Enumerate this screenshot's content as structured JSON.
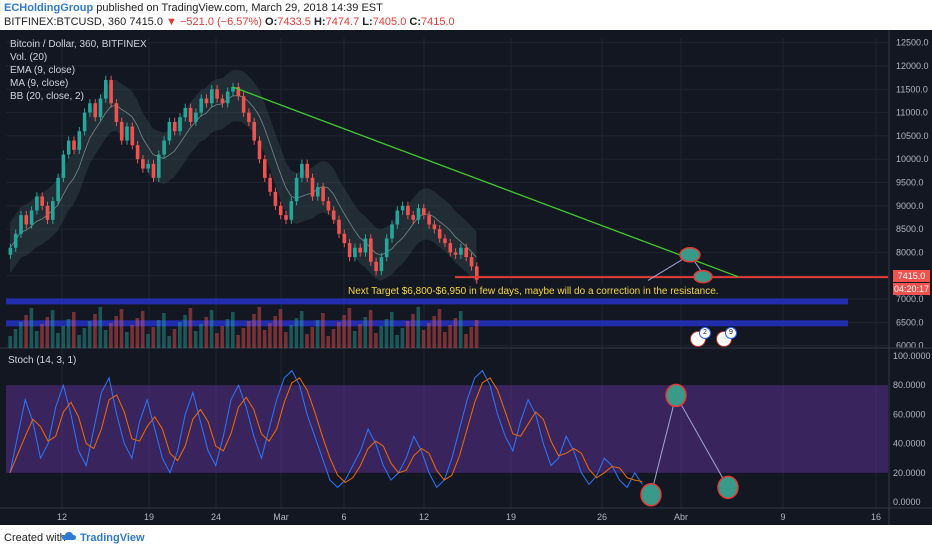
{
  "header": {
    "author": "ECHoldingGroup",
    "published": "published on TradingView.com, March 29, 2018 14:39 EST",
    "symbol": "BITFINEX:BTCUSD, 360",
    "last": "7415.0",
    "change": "−521.0 (−6.57%)",
    "o_label": "O:",
    "o": "7433.5",
    "h_label": "H:",
    "h": "7474.7",
    "l_label": "L:",
    "l": "7405.0",
    "c_label": "C:",
    "c": "7415.0"
  },
  "legend": {
    "title": "Bitcoin / Dollar, 360, BITFINEX",
    "vol": "Vol. (20)",
    "ema": "EMA (9, close)",
    "ma": "MA (9, close)",
    "bb": "BB (20, close, 2)"
  },
  "stoch_label": "Stoch (14, 3, 1)",
  "annotation": "Next Target $6,800-$6,950 in few days, maybe will do a correction in the resistance.",
  "price_tags": {
    "current": "7415.0",
    "countdown": "04:20:17"
  },
  "flags": [
    {
      "badge": "2"
    },
    {
      "badge": "9"
    }
  ],
  "footer": {
    "created": "Created with",
    "brand": "TradingView"
  },
  "colors": {
    "background": "#131722",
    "up": "#26a69a",
    "down": "#ef5350",
    "trendline": "#3fcf2a",
    "support": "#e53935",
    "target_band": "#2431c4",
    "stoch_k": "#2979ff",
    "stoch_d": "#ef6c00",
    "stoch_band": "#5b2f8f"
  },
  "chart_data": {
    "type": "candlestick",
    "symbol": "BITFINEX:BTCUSD",
    "interval": "360",
    "x_tick_labels": [
      "12",
      "19",
      "24",
      "Mar",
      "6",
      "12",
      "19",
      "26",
      "Abr",
      "9",
      "16"
    ],
    "y_tick_labels": [
      "12500.0",
      "12000.0",
      "11500.0",
      "11000.0",
      "10500.0",
      "10000.0",
      "9500.0",
      "9000.0",
      "8500.0",
      "8000.0",
      "7500.0",
      "7000.0",
      "6500.0",
      "6000.0"
    ],
    "y_range": [
      5950,
      12600
    ],
    "closes": [
      8100,
      8400,
      8800,
      8600,
      8900,
      9200,
      9000,
      8700,
      9100,
      9600,
      10100,
      10400,
      10200,
      10600,
      11000,
      11200,
      10900,
      11300,
      11700,
      11200,
      10800,
      10400,
      10700,
      10300,
      10000,
      9800,
      9900,
      9600,
      10100,
      10400,
      10800,
      10600,
      10900,
      11100,
      10800,
      11000,
      11300,
      11200,
      11500,
      11300,
      11200,
      11450,
      11550,
      11350,
      11000,
      10800,
      10400,
      10000,
      9600,
      9300,
      9000,
      8800,
      8700,
      9100,
      9600,
      9900,
      9600,
      9200,
      9400,
      9100,
      8900,
      8700,
      8400,
      8200,
      7900,
      8100,
      8000,
      8300,
      7800,
      7600,
      7900,
      8300,
      8600,
      8900,
      9000,
      8800,
      8700,
      8950,
      8800,
      8600,
      8500,
      8300,
      8200,
      8000,
      7950,
      8100,
      7900,
      7700,
      7415
    ],
    "trendline": {
      "from": {
        "bar": 42,
        "price": 11550
      },
      "to": {
        "bar": 110,
        "price": 7480
      }
    },
    "support_level": 7470,
    "target_bands": [
      6950,
      6480
    ],
    "projection_prices": [
      7400,
      7950,
      7480
    ],
    "stoch_y_tick_labels": [
      "100.0000",
      "80.0000",
      "60.0000",
      "40.0000",
      "20.0000",
      "0.0000"
    ],
    "stoch_band": [
      20,
      80
    ],
    "stoch_k": [
      20,
      45,
      70,
      55,
      30,
      40,
      65,
      80,
      60,
      35,
      25,
      50,
      75,
      85,
      60,
      40,
      30,
      55,
      70,
      50,
      30,
      20,
      35,
      60,
      75,
      55,
      35,
      25,
      45,
      70,
      80,
      65,
      45,
      30,
      50,
      70,
      85,
      90,
      80,
      60,
      45,
      30,
      15,
      10,
      15,
      25,
      35,
      50,
      40,
      25,
      15,
      20,
      30,
      45,
      35,
      20,
      10,
      15,
      30,
      50,
      70,
      85,
      90,
      80,
      60,
      45,
      35,
      55,
      70,
      60,
      40,
      25,
      30,
      45,
      35,
      20,
      12,
      18,
      30,
      25,
      15,
      10,
      20,
      12
    ],
    "stoch_projection": [
      5,
      73,
      10
    ],
    "volume_scale_max": 1
  }
}
